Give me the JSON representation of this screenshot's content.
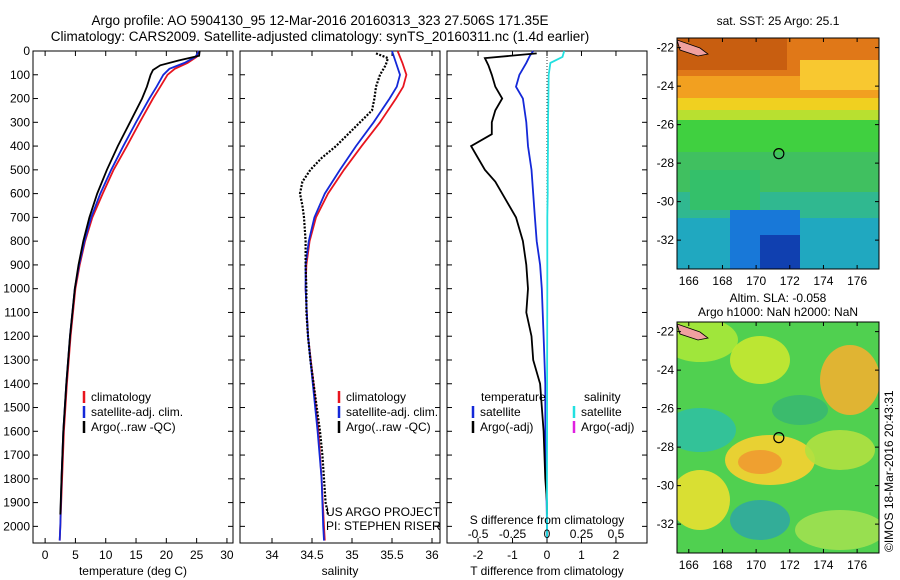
{
  "header": {
    "line1": "Argo profile: AO 5904130_95 12-Mar-2016 20160313_323 27.506S 171.35E",
    "line2": "Climatology: CARS2009. Satellite-adjusted climatology: synTS_20160311.nc (1.4d earlier)"
  },
  "colors": {
    "climatology": "#e8141e",
    "satellite": "#1428d8",
    "argo": "#000000",
    "salinity_satellite": "#22e0e0",
    "salinity_argo": "#e020e0"
  },
  "credits": {
    "project": "US ARGO PROJECT",
    "pi": "PI: STEPHEN RISER",
    "imos": "©IMOS 18-Mar-2016 20:43:31"
  },
  "chart_data": [
    {
      "type": "line",
      "name": "temperature-profile",
      "xlabel": "temperature (deg C)",
      "xlim": [
        -2,
        31
      ],
      "ylim": [
        2070,
        0
      ],
      "xticks": [
        0,
        5,
        10,
        15,
        20,
        25,
        30
      ],
      "yticks": [
        0,
        100,
        200,
        300,
        400,
        500,
        600,
        700,
        800,
        900,
        1000,
        1100,
        1200,
        1300,
        1400,
        1500,
        1600,
        1700,
        1800,
        1900,
        2000
      ],
      "legend": [
        "climatology",
        "satellite-adj. clim.",
        "Argo(..raw -QC)"
      ],
      "legend_position": "lower-right",
      "series": [
        {
          "name": "climatology",
          "color": "#e8141e",
          "depth": [
            0,
            25,
            50,
            75,
            100,
            150,
            200,
            300,
            400,
            500,
            600,
            700,
            800,
            900,
            1000,
            1200,
            1400,
            1600,
            1800,
            2000,
            2060
          ],
          "values": [
            25.3,
            25.0,
            23.5,
            21.4,
            20.2,
            19.0,
            17.8,
            15.6,
            13.5,
            11.3,
            9.5,
            7.8,
            6.6,
            5.7,
            5.0,
            4.2,
            3.6,
            3.1,
            2.8,
            2.5,
            2.4
          ]
        },
        {
          "name": "satellite-adj. clim.",
          "color": "#1428d8",
          "depth": [
            0,
            25,
            50,
            75,
            100,
            150,
            200,
            300,
            400,
            500,
            600,
            700,
            800,
            900,
            1000,
            1200,
            1400,
            1600,
            1800,
            2000,
            2060
          ],
          "values": [
            25.4,
            24.8,
            23.0,
            20.5,
            19.5,
            18.4,
            17.2,
            15.0,
            12.9,
            10.9,
            9.1,
            7.6,
            6.5,
            5.6,
            4.9,
            4.1,
            3.5,
            3.0,
            2.7,
            2.5,
            2.4
          ]
        },
        {
          "name": "Argo(..raw -QC)",
          "color": "#000000",
          "depth": [
            0,
            20,
            40,
            60,
            80,
            100,
            150,
            200,
            300,
            400,
            500,
            600,
            700,
            800,
            900,
            1000,
            1200,
            1400,
            1600,
            1800,
            1950
          ],
          "values": [
            25.5,
            25.4,
            22.0,
            19.0,
            17.8,
            17.4,
            16.8,
            16.0,
            14.0,
            12.0,
            10.2,
            8.6,
            7.3,
            6.3,
            5.5,
            4.9,
            4.1,
            3.5,
            3.0,
            2.7,
            2.5
          ]
        }
      ]
    },
    {
      "type": "line",
      "name": "salinity-profile",
      "xlabel": "salinity",
      "xlim": [
        33.6,
        36.1
      ],
      "ylim": [
        2070,
        0
      ],
      "xticks": [
        34,
        34.5,
        35,
        35.5,
        36
      ],
      "legend": [
        "climatology",
        "satellite-adj. clim.",
        "Argo(..raw -QC)"
      ],
      "legend_position": "lower-right",
      "series": [
        {
          "name": "climatology",
          "color": "#e8141e",
          "depth": [
            0,
            50,
            100,
            150,
            200,
            300,
            400,
            500,
            600,
            700,
            800,
            900,
            1000,
            1200,
            1400,
            1600,
            1800,
            2000,
            2060
          ],
          "values": [
            35.57,
            35.63,
            35.68,
            35.64,
            35.55,
            35.35,
            35.12,
            34.9,
            34.7,
            34.55,
            34.47,
            34.43,
            34.42,
            34.45,
            34.52,
            34.58,
            34.62,
            34.65,
            34.66
          ]
        },
        {
          "name": "satellite-adj. clim.",
          "color": "#1428d8",
          "depth": [
            0,
            50,
            100,
            150,
            200,
            300,
            400,
            500,
            600,
            700,
            800,
            900,
            1000,
            1200,
            1400,
            1600,
            1800,
            2000,
            2060
          ],
          "values": [
            35.5,
            35.55,
            35.6,
            35.56,
            35.47,
            35.27,
            35.05,
            34.85,
            34.66,
            34.53,
            34.46,
            34.42,
            34.42,
            34.45,
            34.51,
            34.57,
            34.62,
            34.64,
            34.65
          ]
        },
        {
          "name": "Argo(..raw -QC)",
          "color": "#000000",
          "depth": [
            10,
            30,
            60,
            100,
            150,
            200,
            250,
            300,
            350,
            400,
            450,
            500,
            550,
            600,
            650,
            700,
            800,
            900,
            1000,
            1100,
            1200,
            1300,
            1400,
            1500,
            1600,
            1700,
            1800,
            1900,
            1950
          ],
          "values": [
            35.3,
            35.45,
            35.42,
            35.35,
            35.3,
            35.28,
            35.25,
            35.1,
            34.95,
            34.8,
            34.62,
            34.48,
            34.38,
            34.35,
            34.38,
            34.4,
            34.42,
            34.42,
            34.43,
            34.43,
            34.45,
            34.48,
            34.52,
            34.56,
            34.6,
            34.63,
            34.65,
            34.67,
            34.7
          ]
        }
      ]
    },
    {
      "type": "line",
      "name": "difference-profile",
      "xlabel": "T difference from climatology",
      "xlabel_top": "S difference from climatology",
      "xlim": [
        -2.9,
        2.9
      ],
      "ylim": [
        2070,
        0
      ],
      "xticks": [
        -2,
        -1,
        0,
        1,
        2
      ],
      "s_ticks": [
        -0.5,
        -0.25,
        0,
        0.25,
        0.5
      ],
      "legend_temperature": {
        "title": "temperature",
        "items": [
          "satellite",
          "Argo(-adj)"
        ]
      },
      "legend_salinity": {
        "title": "salinity",
        "items": [
          "satellite",
          "Argo(-adj)"
        ]
      },
      "series": [
        {
          "name": "temperature satellite",
          "color": "#1428d8",
          "depth": [
            0,
            20,
            50,
            100,
            150,
            200,
            300,
            400,
            500,
            600,
            700,
            800,
            900,
            1000,
            1200,
            1400,
            1600,
            1800,
            2000,
            2050
          ],
          "values": [
            -0.4,
            -0.5,
            -0.6,
            -0.8,
            -0.9,
            -0.7,
            -0.6,
            -0.55,
            -0.45,
            -0.4,
            -0.35,
            -0.3,
            -0.2,
            -0.15,
            -0.1,
            -0.05,
            -0.05,
            -0.02,
            0,
            0
          ]
        },
        {
          "name": "temperature Argo(-adj)",
          "color": "#000000",
          "depth": [
            10,
            30,
            60,
            100,
            150,
            200,
            250,
            300,
            350,
            400,
            450,
            500,
            550,
            600,
            700,
            800,
            900,
            1000,
            1100,
            1200,
            1300,
            1400,
            1600,
            1800,
            1900,
            1950
          ],
          "values": [
            -0.3,
            -1.8,
            -1.7,
            -1.6,
            -1.5,
            -1.3,
            -1.5,
            -1.6,
            -1.6,
            -2.2,
            -2.0,
            -1.8,
            -1.5,
            -1.3,
            -0.9,
            -0.7,
            -0.6,
            -0.55,
            -0.6,
            -0.45,
            -0.4,
            -0.2,
            -0.1,
            -0.05,
            0,
            0
          ]
        },
        {
          "name": "salinity satellite",
          "color": "#22e0e0",
          "depth": [
            0,
            25,
            50,
            100,
            200,
            300,
            400,
            500,
            600,
            700,
            800,
            900,
            1000,
            1200,
            1400,
            1600,
            1800,
            2000,
            2050
          ],
          "values": [
            0.5,
            0.45,
            0.1,
            0.05,
            0.04,
            0.03,
            0.03,
            0.02,
            0.02,
            0.01,
            0.01,
            0.01,
            0.01,
            0.005,
            0.003,
            0.002,
            0.001,
            0,
            0
          ]
        }
      ]
    },
    {
      "type": "heatmap",
      "name": "sst-map",
      "title": "sat. SST: 25 Argo: 25.1",
      "xticks": [
        166,
        168,
        170,
        172,
        174,
        176
      ],
      "yticks": [
        -22,
        -24,
        -26,
        -28,
        -30,
        -32
      ],
      "xlim": [
        165.3,
        177.3
      ],
      "ylim": [
        -33.5,
        -21.5
      ],
      "argo_position": [
        171.35,
        -27.506
      ]
    },
    {
      "type": "heatmap",
      "name": "sla-map",
      "title_line1": "Altim. SLA: -0.058",
      "title_line2": "Argo h1000: NaN h2000: NaN",
      "xticks": [
        166,
        168,
        170,
        172,
        174,
        176
      ],
      "yticks": [
        -22,
        -24,
        -26,
        -28,
        -30,
        -32
      ],
      "xlim": [
        165.3,
        177.3
      ],
      "ylim": [
        -33.5,
        -21.5
      ],
      "argo_position": [
        171.35,
        -27.506
      ]
    }
  ]
}
